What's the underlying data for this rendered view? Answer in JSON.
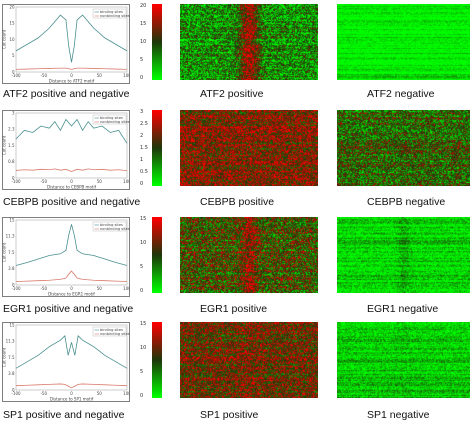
{
  "colors": {
    "positive_line": "#4a8f8f",
    "negative_line": "#d97a6a",
    "heat_high": "#ff0000",
    "heat_mid": "#111111",
    "heat_low": "#00ff00"
  },
  "legend_labels": [
    "binding sites",
    "nonbinding sites"
  ],
  "rows": [
    {
      "name": "ATF2",
      "line_caption": "ATF2 positive and negative",
      "pos_caption": "ATF2 positive",
      "neg_caption": "ATF2 negative",
      "xlabel": "Distance to ATF2 motif",
      "ylabel": "Cut count",
      "colorbar_ticks": [
        "20",
        "15",
        "10",
        "5",
        "0"
      ],
      "heat_pos": {
        "base": 0.28,
        "center": 0.78,
        "center_width": 0.05,
        "noise": 0.35
      },
      "heat_neg": {
        "base": 0.05,
        "center": 0.05,
        "center_width": 0.05,
        "noise": 0.12
      }
    },
    {
      "name": "CEBPB",
      "line_caption": "CEBPB positive and negative",
      "pos_caption": "CEBPB positive",
      "neg_caption": "CEBPB negative",
      "xlabel": "Distance to CEBPB motif",
      "ylabel": "Cut count",
      "colorbar_ticks": [
        "3",
        "2.5",
        "2",
        "1.5",
        "1",
        "0.5",
        "0"
      ],
      "heat_pos": {
        "base": 0.7,
        "center": 0.7,
        "center_width": 0.05,
        "noise": 0.35
      },
      "heat_neg": {
        "base": 0.45,
        "center": 0.45,
        "center_width": 0.05,
        "noise": 0.35
      }
    },
    {
      "name": "EGR1",
      "line_caption": "EGR1 positive and negative",
      "pos_caption": "EGR1 positive",
      "neg_caption": "EGR1 negative",
      "xlabel": "Distance to EGR1 motif",
      "ylabel": "Cut count",
      "colorbar_ticks": [
        "15",
        "10",
        "5",
        "0"
      ],
      "heat_pos": {
        "base": 0.5,
        "center": 0.75,
        "center_width": 0.04,
        "noise": 0.4
      },
      "heat_neg": {
        "base": 0.1,
        "center": 0.22,
        "center_width": 0.03,
        "noise": 0.18
      }
    },
    {
      "name": "SP1",
      "line_caption": "SP1 positive and negative",
      "pos_caption": "SP1 positive",
      "neg_caption": "SP1 negative",
      "xlabel": "Distance to SP1 motif",
      "ylabel": "Cut count",
      "colorbar_ticks": [
        "15",
        "10",
        "5",
        "0"
      ],
      "heat_pos": {
        "base": 0.62,
        "center": 0.66,
        "center_width": 0.05,
        "noise": 0.35
      },
      "heat_neg": {
        "base": 0.12,
        "center": 0.15,
        "center_width": 0.05,
        "noise": 0.18
      }
    }
  ],
  "chart_data": [
    {
      "type": "line",
      "name": "ATF2",
      "x": [
        -100,
        -80,
        -60,
        -40,
        -20,
        -10,
        -5,
        0,
        5,
        10,
        20,
        40,
        60,
        80,
        100
      ],
      "xlim": [
        -100,
        100
      ],
      "ylim": [
        0,
        20
      ],
      "series": [
        {
          "name": "binding sites",
          "values": [
            6.5,
            8.5,
            10.5,
            13.5,
            17.5,
            16,
            8,
            3,
            8,
            16,
            17.5,
            13.5,
            10.5,
            8.5,
            6.5
          ]
        },
        {
          "name": "nonbinding sites",
          "values": [
            0.8,
            0.9,
            1.0,
            1.1,
            1.2,
            1.2,
            1.0,
            0.8,
            1.0,
            1.2,
            1.2,
            1.1,
            1.0,
            0.9,
            0.8
          ]
        }
      ]
    },
    {
      "type": "line",
      "name": "CEBPB",
      "x": [
        -100,
        -85,
        -70,
        -55,
        -40,
        -30,
        -20,
        -10,
        0,
        10,
        20,
        30,
        40,
        55,
        70,
        85,
        100
      ],
      "xlim": [
        -100,
        100
      ],
      "ylim": [
        0,
        3
      ],
      "series": [
        {
          "name": "binding sites",
          "values": [
            1.8,
            2.2,
            2.1,
            2.4,
            2.3,
            2.6,
            2.2,
            2.7,
            2.4,
            2.7,
            2.2,
            2.6,
            2.3,
            2.4,
            2.1,
            2.2,
            1.6
          ]
        },
        {
          "name": "nonbinding sites",
          "values": [
            0.35,
            0.38,
            0.36,
            0.4,
            0.38,
            0.42,
            0.36,
            0.4,
            0.3,
            0.4,
            0.36,
            0.42,
            0.38,
            0.4,
            0.36,
            0.38,
            0.34
          ]
        }
      ]
    },
    {
      "type": "line",
      "name": "EGR1",
      "x": [
        -100,
        -80,
        -60,
        -40,
        -20,
        -10,
        -5,
        0,
        5,
        10,
        20,
        40,
        60,
        80,
        100
      ],
      "xlim": [
        -100,
        100
      ],
      "ylim": [
        0,
        15
      ],
      "series": [
        {
          "name": "binding sites",
          "values": [
            4.5,
            5.2,
            6.0,
            6.8,
            7.2,
            8.0,
            11.5,
            14.0,
            11.5,
            8.0,
            7.2,
            6.8,
            6.0,
            5.2,
            4.5
          ]
        },
        {
          "name": "nonbinding sites",
          "values": [
            0.8,
            0.9,
            1.0,
            1.1,
            1.3,
            1.6,
            2.5,
            3.2,
            2.5,
            1.6,
            1.3,
            1.1,
            1.0,
            0.9,
            0.8
          ]
        }
      ]
    },
    {
      "type": "line",
      "name": "SP1",
      "x": [
        -100,
        -80,
        -60,
        -40,
        -20,
        -12,
        -6,
        0,
        6,
        12,
        20,
        40,
        60,
        80,
        100
      ],
      "xlim": [
        -100,
        100
      ],
      "ylim": [
        0,
        15
      ],
      "series": [
        {
          "name": "binding sites",
          "values": [
            5.0,
            6.5,
            8.0,
            10.0,
            11.5,
            12.5,
            8.0,
            11.0,
            8.0,
            12.5,
            11.5,
            10.0,
            8.0,
            6.5,
            5.0
          ]
        },
        {
          "name": "nonbinding sites",
          "values": [
            1.0,
            1.1,
            1.2,
            1.3,
            1.4,
            1.3,
            0.9,
            0.5,
            0.9,
            1.3,
            1.4,
            1.3,
            1.2,
            1.1,
            1.0
          ]
        }
      ]
    }
  ]
}
